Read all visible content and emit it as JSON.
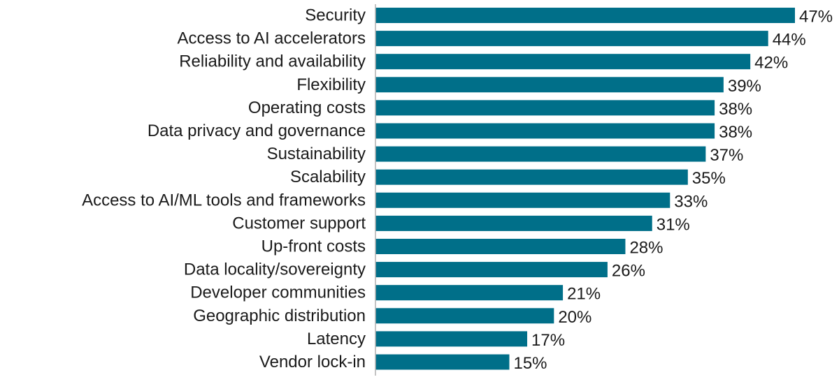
{
  "chart_data": {
    "type": "bar",
    "orientation": "horizontal",
    "categories": [
      "Security",
      "Access to AI accelerators",
      "Reliability and availability",
      "Flexibility",
      "Operating costs",
      "Data privacy and governance",
      "Sustainability",
      "Scalability",
      "Access to AI/ML tools and frameworks",
      "Customer support",
      "Up-front costs",
      "Data locality/sovereignty",
      "Developer communities",
      "Geographic distribution",
      "Latency",
      "Vendor lock-in"
    ],
    "values": [
      47,
      44,
      42,
      39,
      38,
      38,
      37,
      35,
      33,
      31,
      28,
      26,
      21,
      20,
      17,
      15
    ],
    "value_labels": [
      "47%",
      "44%",
      "42%",
      "39%",
      "38%",
      "38%",
      "37%",
      "35%",
      "33%",
      "31%",
      "28%",
      "26%",
      "21%",
      "20%",
      "17%",
      "15%"
    ],
    "unit": "%",
    "xlim": [
      0,
      47
    ],
    "grid": false,
    "legend": "none",
    "bar_color": "#006f89",
    "axis_color": "#b0b0b0"
  }
}
